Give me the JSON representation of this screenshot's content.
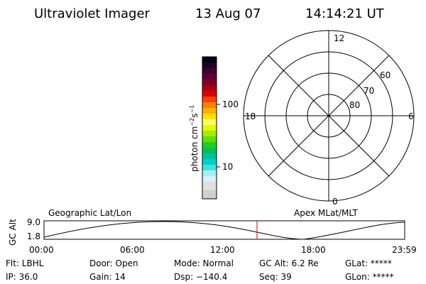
{
  "header": {
    "title": "Ultraviolet Imager",
    "date": "13 Aug 07",
    "time": "14:14:21 UT"
  },
  "colorbar": {
    "label": "photon cm",
    "exp1": "−2",
    "unit2": "s",
    "exp2": "−1",
    "ticks": [
      "100",
      "10"
    ]
  },
  "polar": {
    "clock": [
      "12",
      "6",
      "0",
      "18"
    ],
    "latitudes": [
      "60",
      "70",
      "80"
    ]
  },
  "timeline": {
    "y_label": "GC Alt",
    "y_ticks": [
      "9.0",
      "1.8"
    ],
    "left_label": "Geographic Lat/Lon",
    "right_label": "Apex MLat/MLT",
    "x_ticks": [
      "00:00",
      "06:00",
      "12:00",
      "18:00",
      "23:59"
    ]
  },
  "info": {
    "rows": [
      [
        "Flt: LBHL",
        "Door: Open",
        "Mode: Normal",
        "GC Alt: 6.2 Re",
        "GLat: *****"
      ],
      [
        "IP: 36.0",
        "Gain: 14",
        "Dsp: −140.4",
        "Seq: 39",
        "GLon: *****"
      ]
    ]
  }
}
